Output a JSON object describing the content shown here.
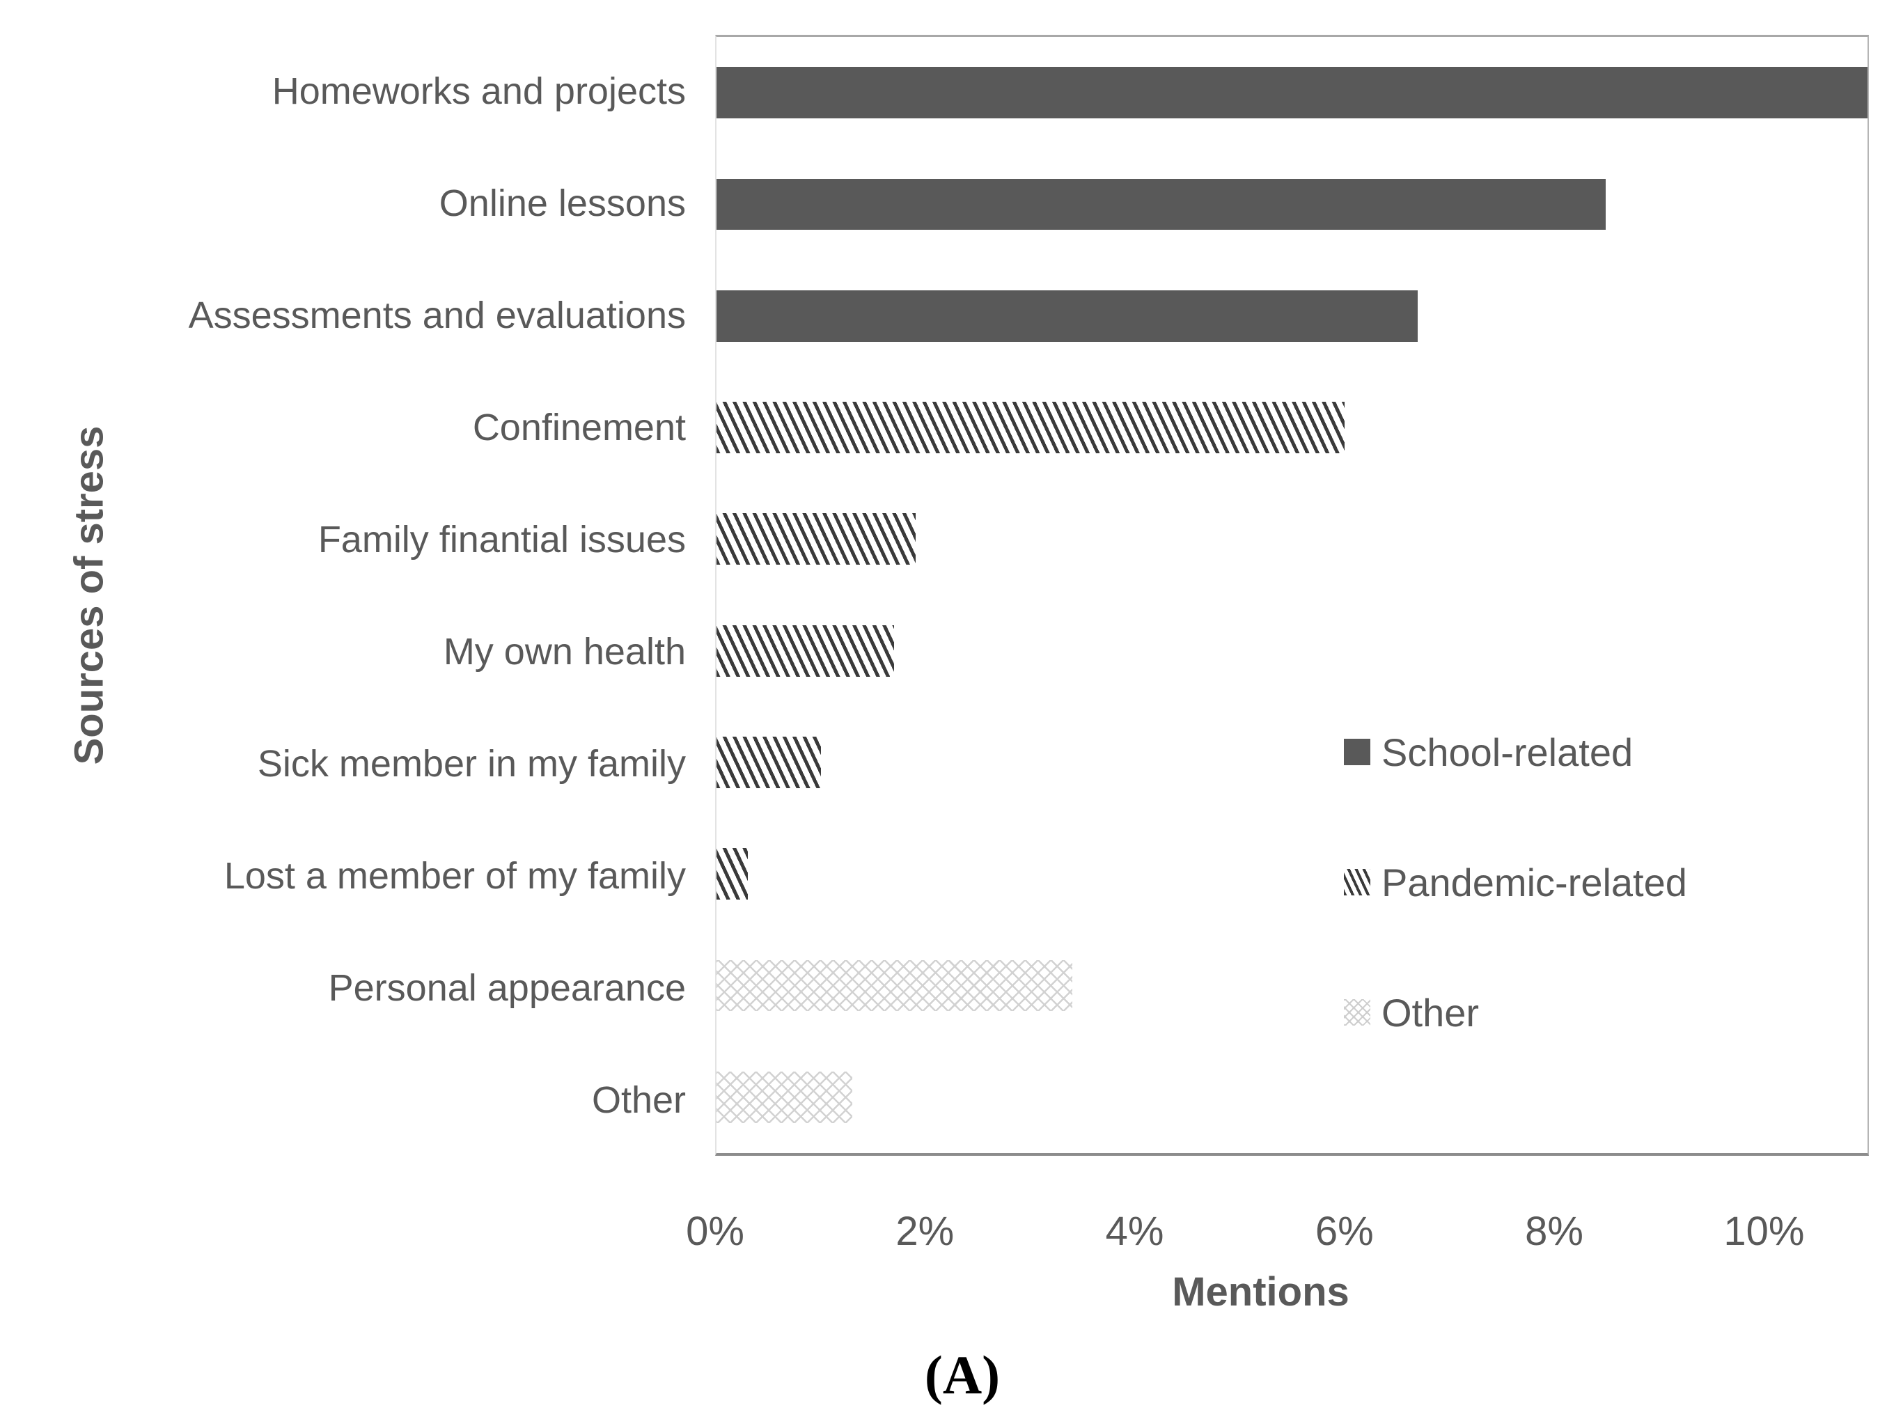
{
  "figure": {
    "caption": "(A)",
    "background": "#ffffff"
  },
  "chart_data": {
    "type": "bar",
    "orientation": "horizontal",
    "title": "",
    "xlabel": "Mentions",
    "ylabel": "Sources of stress",
    "xlim": [
      0,
      11
    ],
    "x_tick_labels": [
      "0%",
      "2%",
      "4%",
      "6%",
      "8%",
      "10%"
    ],
    "x_tick_values": [
      0,
      2,
      4,
      6,
      8,
      10
    ],
    "grid": false,
    "legend_position": "center-right",
    "categories": [
      "Homeworks and projects",
      "Online lessons",
      "Assessments and evaluations",
      "Confinement",
      "Family finantial issues",
      "My own health",
      "Sick member in my family",
      "Lost a member of my family",
      "Personal appearance",
      "Other"
    ],
    "values": [
      11.0,
      8.5,
      6.7,
      6.0,
      1.9,
      1.7,
      1.0,
      0.3,
      3.4,
      1.3
    ],
    "value_unit": "%",
    "bar_groups": [
      "School-related",
      "School-related",
      "School-related",
      "Pandemic-related",
      "Pandemic-related",
      "Pandemic-related",
      "Pandemic-related",
      "Pandemic-related",
      "Other",
      "Other"
    ],
    "legend": [
      {
        "label": "School-related",
        "pattern": "solid"
      },
      {
        "label": "Pandemic-related",
        "pattern": "diagonal-hatch"
      },
      {
        "label": "Other",
        "pattern": "light-crosshatch"
      }
    ]
  },
  "colors": {
    "bar_solid": "#595959",
    "hatch_stroke": "#3a3a3a",
    "crosshatch_stroke": "#d2d2d2",
    "text": "#595959",
    "axis_line": "#8c8c8c",
    "plot_border": "#b0b0b0",
    "caption_text": "#000000"
  }
}
